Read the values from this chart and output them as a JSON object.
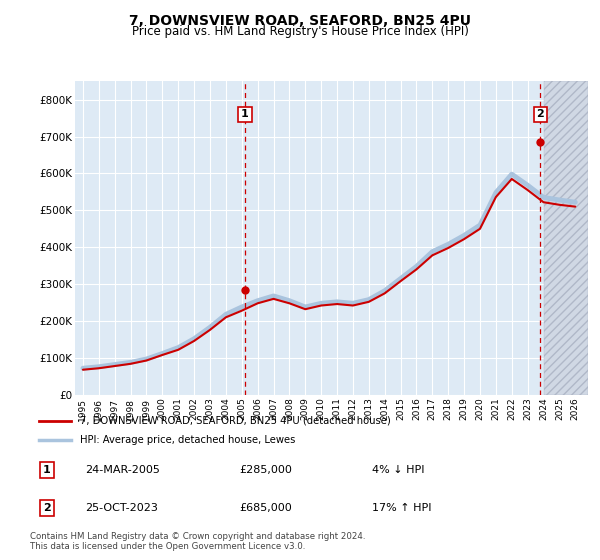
{
  "title": "7, DOWNSVIEW ROAD, SEAFORD, BN25 4PU",
  "subtitle": "Price paid vs. HM Land Registry's House Price Index (HPI)",
  "legend_line1": "7, DOWNSVIEW ROAD, SEAFORD, BN25 4PU (detached house)",
  "legend_line2": "HPI: Average price, detached house, Lewes",
  "annotation1_date": "24-MAR-2005",
  "annotation1_price": "£285,000",
  "annotation1_hpi": "4% ↓ HPI",
  "annotation1_year": 2005.2,
  "annotation1_value": 285000,
  "annotation2_date": "25-OCT-2023",
  "annotation2_price": "£685,000",
  "annotation2_hpi": "17% ↑ HPI",
  "annotation2_year": 2023.8,
  "annotation2_value": 685000,
  "footer": "Contains HM Land Registry data © Crown copyright and database right 2024.\nThis data is licensed under the Open Government Licence v3.0.",
  "bg_color": "#deeaf5",
  "hpi_color": "#aac4de",
  "price_color": "#cc0000",
  "grid_color": "#ffffff",
  "hpi_years": [
    1995,
    1996,
    1997,
    1998,
    1999,
    2000,
    2001,
    2002,
    2003,
    2004,
    2005,
    2006,
    2007,
    2008,
    2009,
    2010,
    2011,
    2012,
    2013,
    2014,
    2015,
    2016,
    2017,
    2018,
    2019,
    2020,
    2021,
    2022,
    2023,
    2024,
    2025,
    2026
  ],
  "hpi_values": [
    72000,
    76000,
    82000,
    88000,
    97000,
    112000,
    128000,
    152000,
    183000,
    218000,
    238000,
    255000,
    268000,
    255000,
    238000,
    248000,
    252000,
    248000,
    258000,
    282000,
    315000,
    348000,
    388000,
    408000,
    432000,
    460000,
    548000,
    598000,
    568000,
    535000,
    528000,
    522000
  ],
  "price_years": [
    1995,
    1996,
    1997,
    1998,
    1999,
    2000,
    2001,
    2002,
    2003,
    2004,
    2005,
    2006,
    2007,
    2008,
    2009,
    2010,
    2011,
    2012,
    2013,
    2014,
    2015,
    2016,
    2017,
    2018,
    2019,
    2020,
    2021,
    2022,
    2023,
    2024,
    2025,
    2026
  ],
  "price_values": [
    68000,
    72000,
    78000,
    84000,
    93000,
    108000,
    122000,
    146000,
    176000,
    210000,
    228000,
    248000,
    260000,
    248000,
    232000,
    242000,
    246000,
    242000,
    252000,
    275000,
    308000,
    340000,
    378000,
    398000,
    422000,
    450000,
    536000,
    585000,
    555000,
    522000,
    515000,
    510000
  ],
  "ylim_min": 0,
  "ylim_max": 850000,
  "yticks": [
    0,
    100000,
    200000,
    300000,
    400000,
    500000,
    600000,
    700000,
    800000
  ],
  "ytick_labels": [
    "£0",
    "£100K",
    "£200K",
    "£300K",
    "£400K",
    "£500K",
    "£600K",
    "£700K",
    "£800K"
  ],
  "xtick_years": [
    1995,
    1996,
    1997,
    1998,
    1999,
    2000,
    2001,
    2002,
    2003,
    2004,
    2005,
    2006,
    2007,
    2008,
    2009,
    2010,
    2011,
    2012,
    2013,
    2014,
    2015,
    2016,
    2017,
    2018,
    2019,
    2020,
    2021,
    2022,
    2023,
    2024,
    2025,
    2026
  ],
  "vline_color": "#cc0000",
  "hatch_start": 2024,
  "xlim_min": 1994.5,
  "xlim_max": 2026.8
}
